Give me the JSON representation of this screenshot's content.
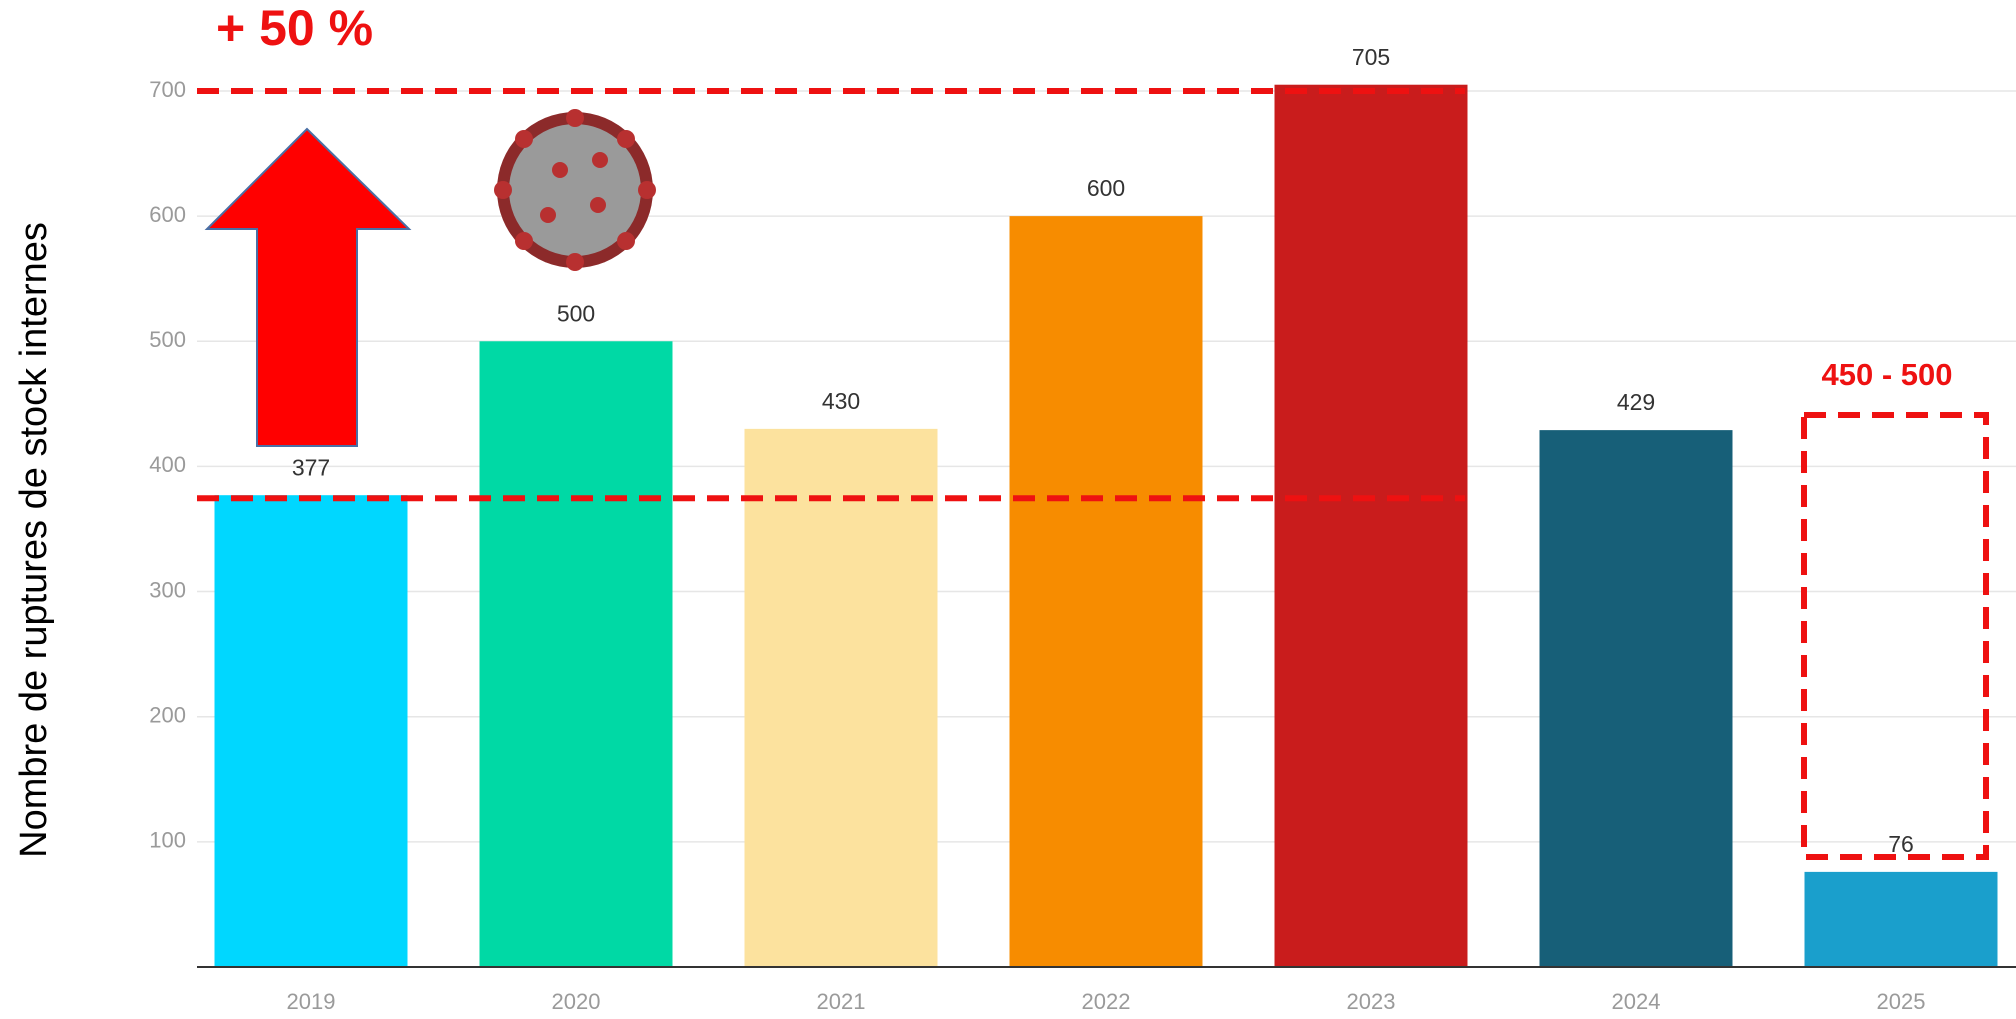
{
  "chart_data": {
    "type": "bar",
    "y_label": "Nombre de ruptures de stock internes",
    "categories": [
      "2019",
      "2020",
      "2021",
      "2022",
      "2023",
      "2024",
      "2025"
    ],
    "values": [
      377,
      500,
      430,
      600,
      705,
      429,
      76
    ],
    "colors": [
      "#00d7ff",
      "#00d9a5",
      "#fce29e",
      "#f78c00",
      "#c91c1c",
      "#175f78",
      "#1a9fcc"
    ],
    "ylim": [
      0,
      750
    ],
    "yticks": [
      100,
      200,
      300,
      400,
      500,
      600,
      700
    ],
    "grid": true,
    "annotations": {
      "increase": "+ 50 %",
      "forecast": "450 - 500"
    }
  }
}
